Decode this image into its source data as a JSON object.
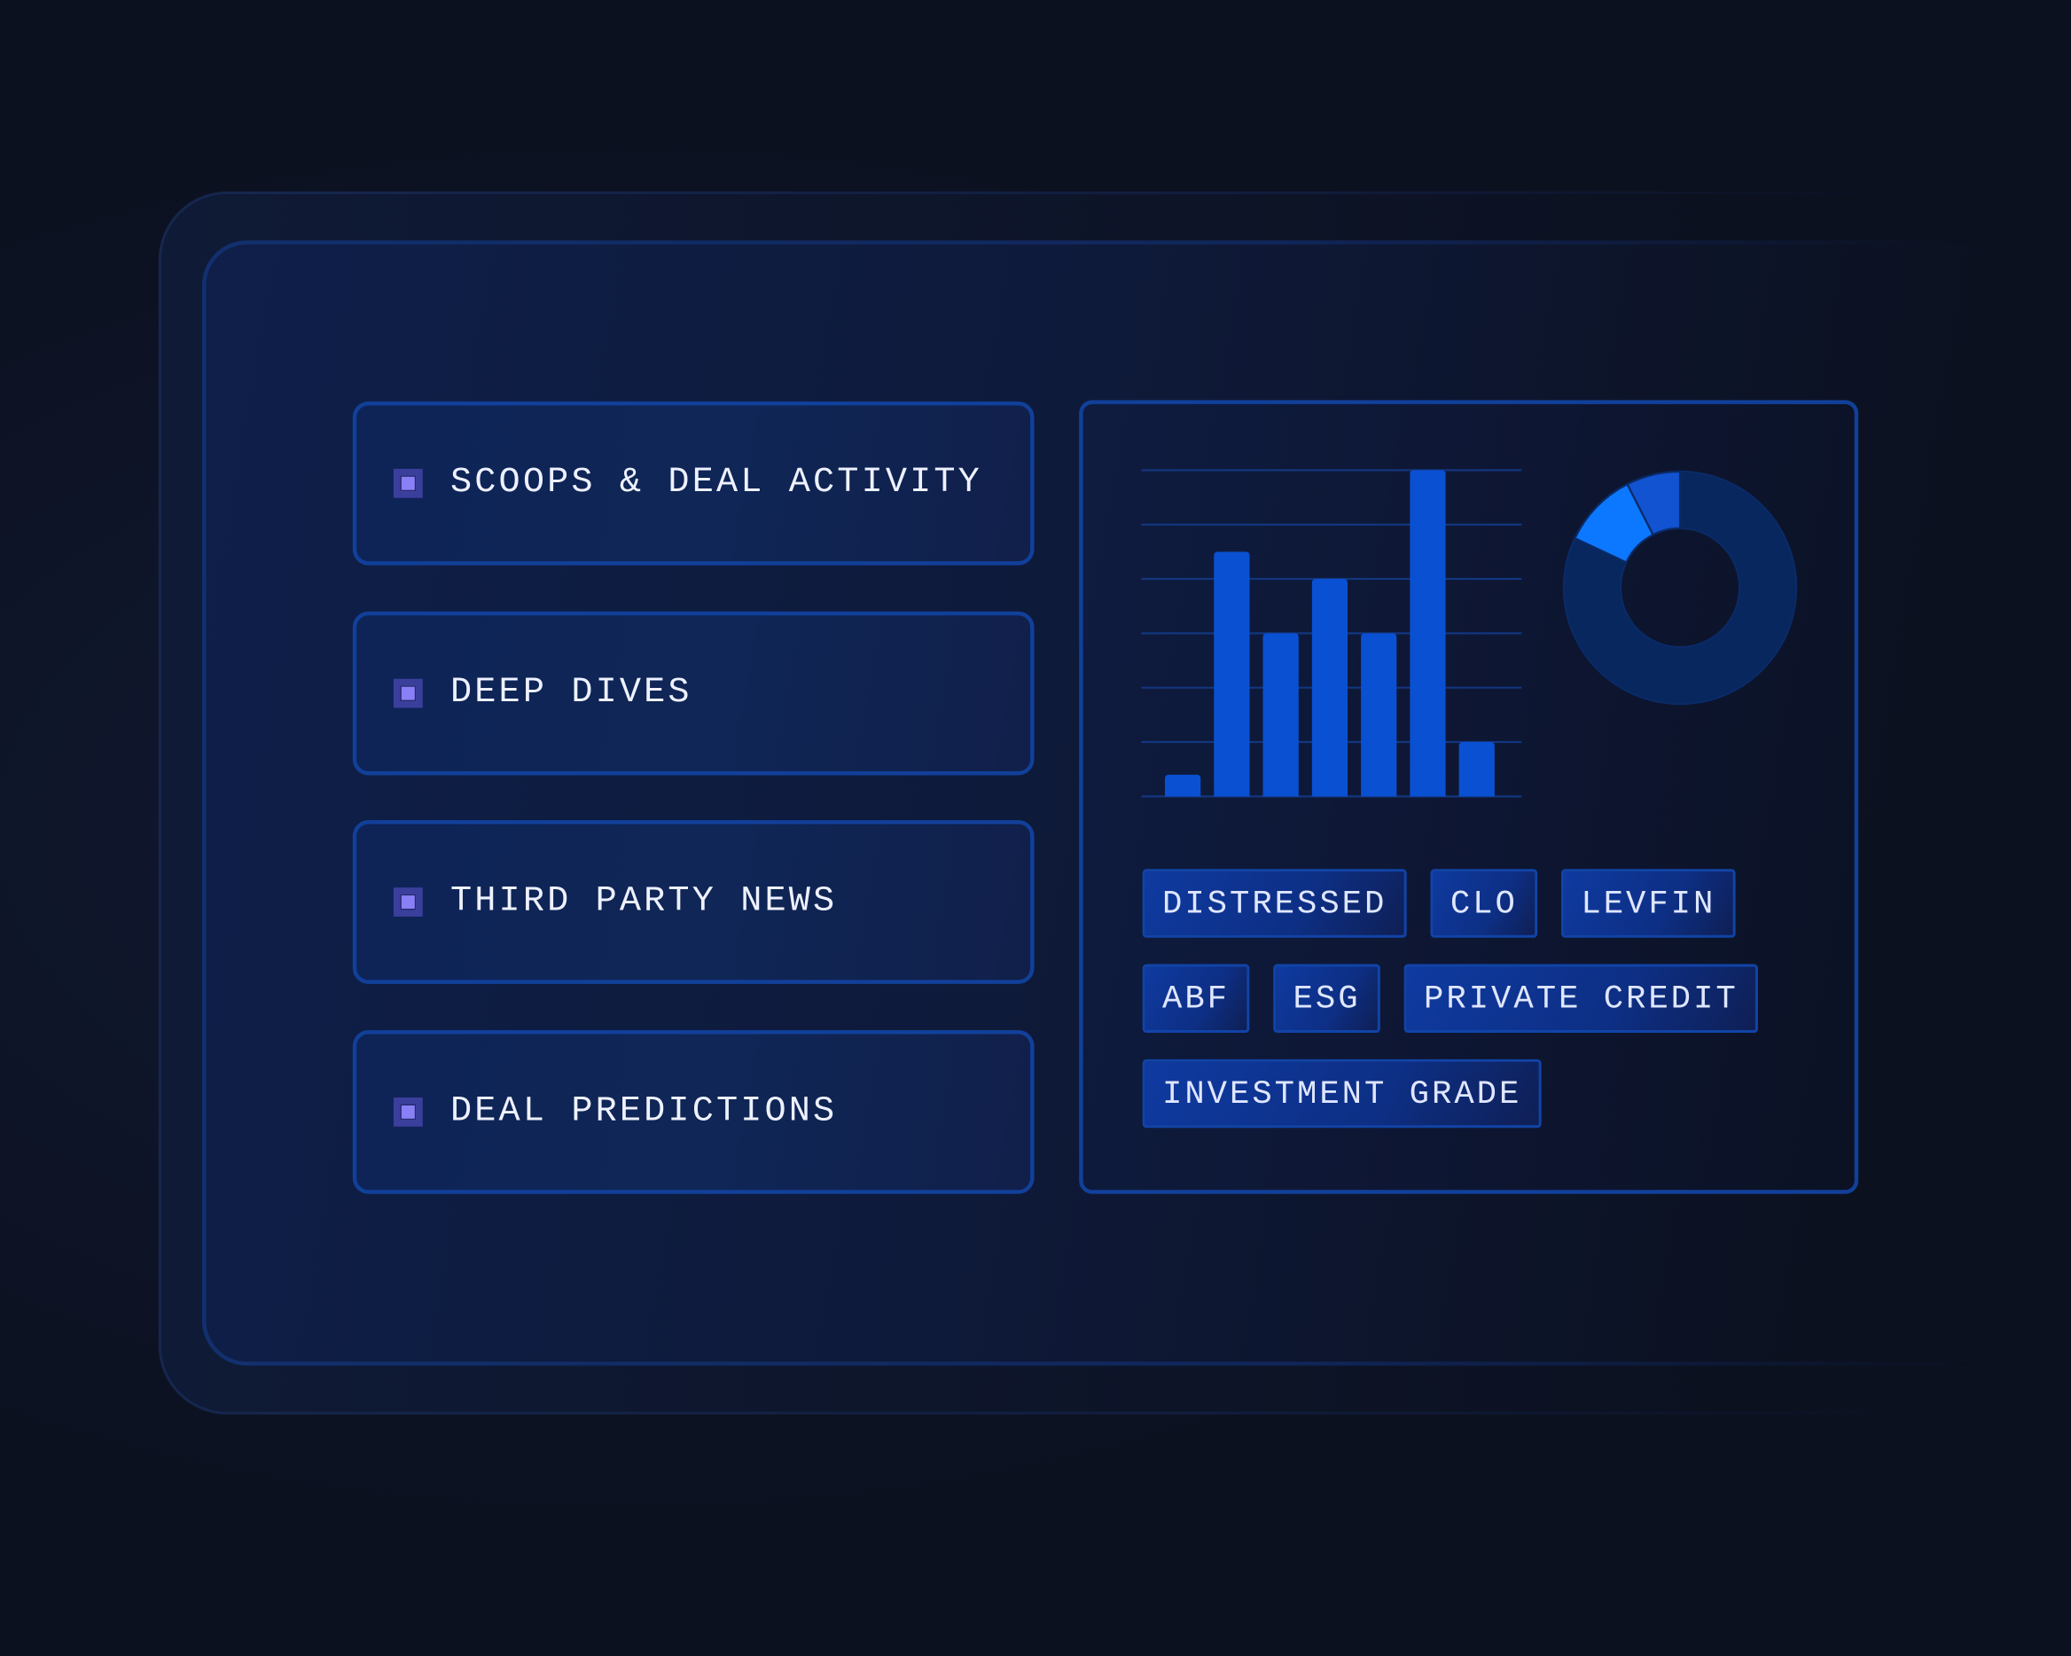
{
  "cards": [
    {
      "label": "SCOOPS & DEAL ACTIVITY",
      "icon": "square-bullet-icon"
    },
    {
      "label": "DEEP DIVES",
      "icon": "square-bullet-icon"
    },
    {
      "label": "THIRD PARTY NEWS",
      "icon": "square-bullet-icon"
    },
    {
      "label": "DEAL PREDICTIONS",
      "icon": "square-bullet-icon"
    }
  ],
  "tags": [
    [
      "DISTRESSED",
      "CLO",
      "LEVFIN"
    ],
    [
      "ABF",
      "ESG",
      "PRIVATE CREDIT"
    ],
    [
      "INVESTMENT GRADE"
    ]
  ],
  "colors": {
    "bar": "#0a50d2",
    "grid": "#12367f",
    "donut_main": "#08275e",
    "donut_bright": "#0c78ff",
    "donut_mid": "#1153d0",
    "accent_square": "#8a80f6"
  },
  "chart_data": [
    {
      "type": "bar",
      "values": [
        0.4,
        4.5,
        3,
        4,
        3,
        6,
        1
      ],
      "ylim": [
        0,
        6
      ],
      "grid": true
    },
    {
      "type": "pie",
      "donut": true,
      "values": [
        82,
        10.5,
        7.5
      ]
    }
  ]
}
